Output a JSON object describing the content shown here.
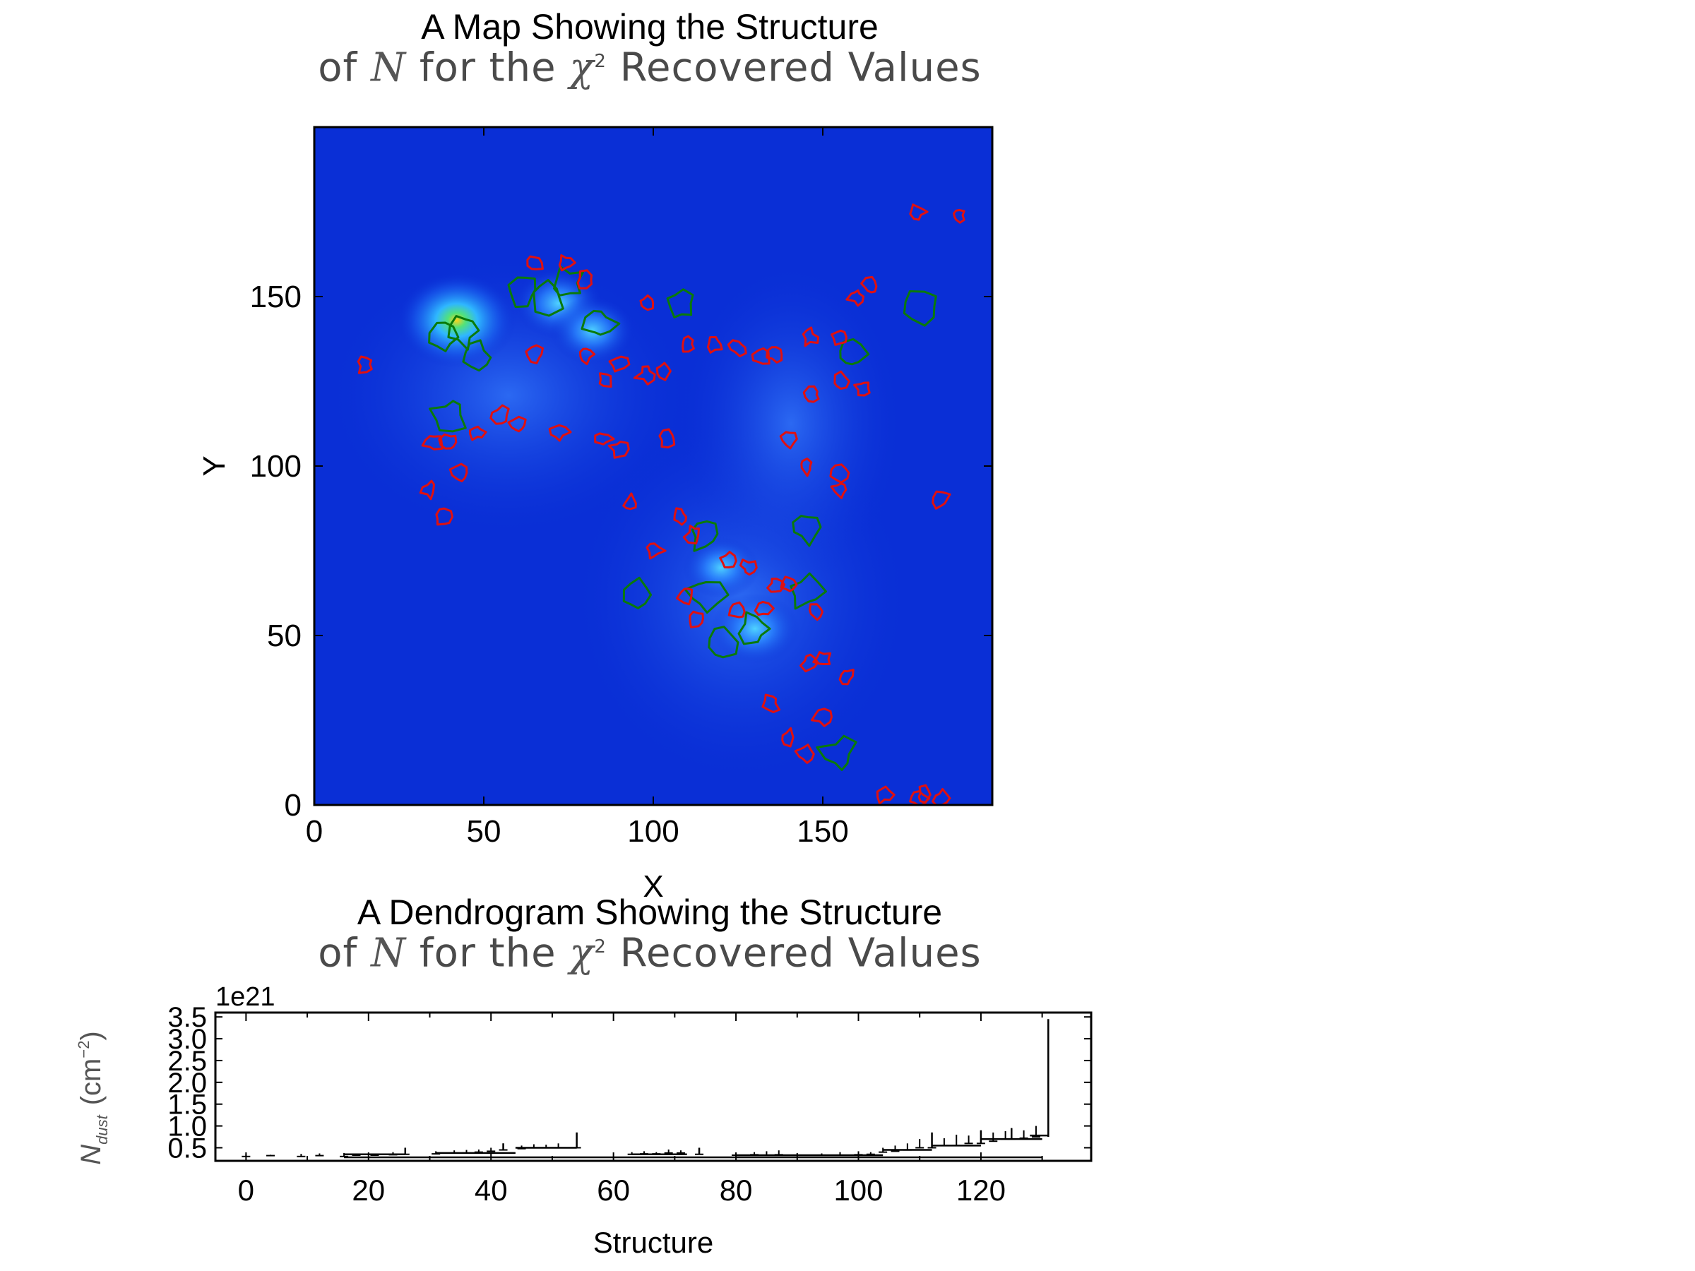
{
  "chart_data": [
    {
      "type": "heatmap",
      "title_line1": "A Map Showing the Structure",
      "title_line2_pre": "of ",
      "title_line2_var": "N",
      "title_line2_mid": " for the ",
      "title_line2_chi": "χ",
      "title_line2_sup": "2",
      "title_line2_post": "  Recovered Values",
      "xlabel": "X",
      "ylabel": "Y",
      "xlim": [
        0,
        200
      ],
      "ylim": [
        0,
        200
      ],
      "xticks": [
        "0",
        "50",
        "100",
        "150"
      ],
      "yticks": [
        "0",
        "50",
        "100",
        "150"
      ],
      "xtick_values": [
        0,
        50,
        100,
        150
      ],
      "ytick_values": [
        0,
        50,
        100,
        150
      ],
      "colormap": "jet",
      "background_color": "#0a2fd6",
      "contour_colors": {
        "leaf": "#e01010",
        "branch": "#0a7a0a"
      },
      "bright_regions": [
        {
          "x": 42,
          "y": 143,
          "level": 0.9
        },
        {
          "x": 72,
          "y": 148,
          "level": 0.55
        },
        {
          "x": 82,
          "y": 140,
          "level": 0.5
        },
        {
          "x": 130,
          "y": 52,
          "level": 0.55
        },
        {
          "x": 120,
          "y": 70,
          "level": 0.4
        }
      ],
      "contours": {
        "branch": [
          [
            38,
            138
          ],
          [
            44,
            140
          ],
          [
            48,
            132
          ],
          [
            62,
            152
          ],
          [
            68,
            150
          ],
          [
            75,
            154
          ],
          [
            84,
            142
          ],
          [
            108,
            148
          ],
          [
            158,
            133
          ],
          [
            179,
            147
          ],
          [
            40,
            115
          ],
          [
            115,
            80
          ],
          [
            145,
            82
          ],
          [
            95,
            62
          ],
          [
            115,
            62
          ],
          [
            145,
            63
          ],
          [
            130,
            52
          ],
          [
            120,
            48
          ],
          [
            155,
            15
          ]
        ],
        "leaf": [
          [
            178,
            175
          ],
          [
            190,
            174
          ],
          [
            65,
            160
          ],
          [
            74,
            160
          ],
          [
            80,
            155
          ],
          [
            98,
            148
          ],
          [
            160,
            150
          ],
          [
            164,
            153
          ],
          [
            15,
            130
          ],
          [
            65,
            133
          ],
          [
            80,
            133
          ],
          [
            86,
            125
          ],
          [
            90,
            130
          ],
          [
            98,
            127
          ],
          [
            103,
            128
          ],
          [
            110,
            136
          ],
          [
            118,
            136
          ],
          [
            125,
            135
          ],
          [
            132,
            132
          ],
          [
            136,
            133
          ],
          [
            146,
            138
          ],
          [
            155,
            138
          ],
          [
            147,
            121
          ],
          [
            155,
            125
          ],
          [
            162,
            123
          ],
          [
            35,
            107
          ],
          [
            40,
            107
          ],
          [
            48,
            110
          ],
          [
            55,
            115
          ],
          [
            60,
            112
          ],
          [
            72,
            110
          ],
          [
            85,
            108
          ],
          [
            90,
            105
          ],
          [
            104,
            108
          ],
          [
            140,
            108
          ],
          [
            145,
            100
          ],
          [
            155,
            98
          ],
          [
            34,
            93
          ],
          [
            43,
            98
          ],
          [
            38,
            85
          ],
          [
            185,
            90
          ],
          [
            155,
            93
          ],
          [
            93,
            89
          ],
          [
            108,
            85
          ],
          [
            112,
            80
          ],
          [
            100,
            75
          ],
          [
            122,
            72
          ],
          [
            128,
            70
          ],
          [
            136,
            65
          ],
          [
            140,
            65
          ],
          [
            132,
            58
          ],
          [
            110,
            62
          ],
          [
            113,
            55
          ],
          [
            125,
            57
          ],
          [
            148,
            57
          ],
          [
            150,
            43
          ],
          [
            146,
            42
          ],
          [
            157,
            38
          ],
          [
            135,
            30
          ],
          [
            150,
            26
          ],
          [
            140,
            20
          ],
          [
            145,
            15
          ],
          [
            180,
            3
          ],
          [
            185,
            2
          ],
          [
            168,
            3
          ],
          [
            178,
            2
          ]
        ]
      }
    },
    {
      "type": "bar",
      "title_line1": "A Dendrogram Showing the Structure",
      "title_line2_pre": "of ",
      "title_line2_var": "N",
      "title_line2_mid": " for the ",
      "title_line2_chi": "χ",
      "title_line2_sup": "2",
      "title_line2_post": "  Recovered Values",
      "xlabel": "Structure",
      "ylabel_var": "N",
      "ylabel_sub": "dust",
      "ylabel_unit": "(cm",
      "ylabel_sup": "−2",
      "ylabel_close": ")",
      "offset_text": "1e21",
      "xlim": [
        -5,
        138
      ],
      "ylim": [
        0.2,
        3.6
      ],
      "xticks": [
        "0",
        "20",
        "40",
        "60",
        "80",
        "100",
        "120"
      ],
      "xtick_values": [
        0,
        20,
        40,
        60,
        80,
        100,
        120
      ],
      "yticks": [
        "0.5",
        "1.0",
        "1.5",
        "2.0",
        "2.5",
        "3.0",
        "3.5"
      ],
      "ytick_values": [
        0.5,
        1.0,
        1.5,
        2.0,
        2.5,
        3.0,
        3.5
      ],
      "line_color": "#000000",
      "horizontal_segments": [
        {
          "x0": 16,
          "x1": 130,
          "y": 0.28
        },
        {
          "x0": 16,
          "x1": 26,
          "y": 0.35
        },
        {
          "x0": 31,
          "x1": 44,
          "y": 0.38
        },
        {
          "x0": 44,
          "x1": 54,
          "y": 0.5
        },
        {
          "x0": 63,
          "x1": 72,
          "y": 0.35
        },
        {
          "x0": 80,
          "x1": 104,
          "y": 0.33
        },
        {
          "x0": 104,
          "x1": 112,
          "y": 0.45
        },
        {
          "x0": 112,
          "x1": 120,
          "y": 0.55
        },
        {
          "x0": 120,
          "x1": 130,
          "y": 0.7
        },
        {
          "x0": 128,
          "x1": 131,
          "y": 0.78
        }
      ],
      "vertical_segments": [
        {
          "x": 131,
          "y0": 0.75,
          "y1": 3.45
        },
        {
          "x": 54,
          "y0": 0.5,
          "y1": 0.85
        },
        {
          "x": 42,
          "y0": 0.45,
          "y1": 0.6
        },
        {
          "x": 26,
          "y0": 0.35,
          "y1": 0.5
        },
        {
          "x": 74,
          "y0": 0.35,
          "y1": 0.5
        },
        {
          "x": 120,
          "y0": 0.6,
          "y1": 0.9
        },
        {
          "x": 125,
          "y0": 0.7,
          "y1": 0.95
        },
        {
          "x": 112,
          "y0": 0.5,
          "y1": 0.85
        }
      ],
      "leaves": [
        [
          0,
          0.3,
          0.35
        ],
        [
          4,
          0.32,
          0.34
        ],
        [
          9,
          0.3,
          0.36
        ],
        [
          12,
          0.32,
          0.37
        ],
        [
          16,
          0.3,
          0.38
        ],
        [
          18,
          0.33,
          0.36
        ],
        [
          21,
          0.33,
          0.37
        ],
        [
          24,
          0.34,
          0.4
        ],
        [
          26,
          0.35,
          0.5
        ],
        [
          31,
          0.36,
          0.42
        ],
        [
          34,
          0.38,
          0.44
        ],
        [
          36,
          0.38,
          0.45
        ],
        [
          38,
          0.4,
          0.46
        ],
        [
          40,
          0.42,
          0.5
        ],
        [
          42,
          0.45,
          0.6
        ],
        [
          45,
          0.48,
          0.55
        ],
        [
          47,
          0.5,
          0.58
        ],
        [
          49,
          0.5,
          0.57
        ],
        [
          51,
          0.5,
          0.6
        ],
        [
          54,
          0.5,
          0.85
        ],
        [
          63,
          0.35,
          0.4
        ],
        [
          65,
          0.36,
          0.42
        ],
        [
          67,
          0.36,
          0.4
        ],
        [
          69,
          0.38,
          0.46
        ],
        [
          71,
          0.38,
          0.44
        ],
        [
          74,
          0.35,
          0.5
        ],
        [
          80,
          0.33,
          0.38
        ],
        [
          83,
          0.34,
          0.4
        ],
        [
          85,
          0.33,
          0.42
        ],
        [
          87,
          0.34,
          0.44
        ],
        [
          90,
          0.33,
          0.38
        ],
        [
          94,
          0.33,
          0.37
        ],
        [
          97,
          0.33,
          0.4
        ],
        [
          100,
          0.34,
          0.42
        ],
        [
          102,
          0.35,
          0.4
        ],
        [
          104,
          0.4,
          0.5
        ],
        [
          106,
          0.42,
          0.55
        ],
        [
          108,
          0.45,
          0.6
        ],
        [
          110,
          0.5,
          0.7
        ],
        [
          112,
          0.5,
          0.85
        ],
        [
          114,
          0.55,
          0.72
        ],
        [
          116,
          0.55,
          0.8
        ],
        [
          118,
          0.6,
          0.78
        ],
        [
          120,
          0.6,
          0.9
        ],
        [
          122,
          0.65,
          0.85
        ],
        [
          124,
          0.7,
          0.88
        ],
        [
          125,
          0.7,
          0.95
        ],
        [
          127,
          0.72,
          0.9
        ],
        [
          129,
          0.75,
          1.0
        ]
      ]
    }
  ]
}
